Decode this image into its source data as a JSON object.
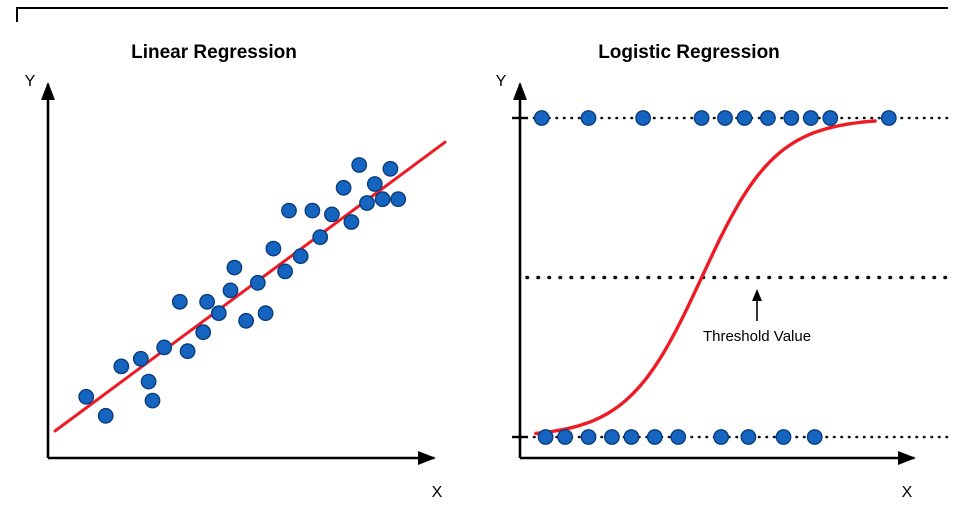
{
  "figure": {
    "background": "#ffffff",
    "dot_color": "#1565c0",
    "dot_edge_color": "#0b3d7e",
    "curve_color": "#ed1c24",
    "axis_color": "#000000"
  },
  "chart_data": [
    {
      "type": "scatter",
      "title": "Linear Regression",
      "xlabel": "X",
      "ylabel": "Y",
      "axis_tick_labels": "none",
      "xlim": [
        0,
        10
      ],
      "ylim": [
        0,
        10
      ],
      "points": [
        [
          0.8,
          1.4
        ],
        [
          1.3,
          0.9
        ],
        [
          1.7,
          2.2
        ],
        [
          2.2,
          2.4
        ],
        [
          2.4,
          1.8
        ],
        [
          2.5,
          1.3
        ],
        [
          2.8,
          2.7
        ],
        [
          3.2,
          3.9
        ],
        [
          3.4,
          2.6
        ],
        [
          3.8,
          3.1
        ],
        [
          3.9,
          3.9
        ],
        [
          4.2,
          3.6
        ],
        [
          4.5,
          4.2
        ],
        [
          4.6,
          4.8
        ],
        [
          4.9,
          3.4
        ],
        [
          5.2,
          4.4
        ],
        [
          5.4,
          3.6
        ],
        [
          5.6,
          5.3
        ],
        [
          5.9,
          4.7
        ],
        [
          6.0,
          6.3
        ],
        [
          6.3,
          5.1
        ],
        [
          6.6,
          6.3
        ],
        [
          6.8,
          5.6
        ],
        [
          7.1,
          6.2
        ],
        [
          7.4,
          6.9
        ],
        [
          7.6,
          6.0
        ],
        [
          7.8,
          7.5
        ],
        [
          8.0,
          6.5
        ],
        [
          8.2,
          7.0
        ],
        [
          8.4,
          6.6
        ],
        [
          8.6,
          7.4
        ],
        [
          8.8,
          6.6
        ]
      ],
      "trend_line": {
        "type": "linear",
        "from": [
          0,
          0.5
        ],
        "to": [
          10,
          8.1
        ]
      }
    },
    {
      "type": "scatter",
      "title": "Logistic Regression",
      "xlabel": "X",
      "ylabel": "Y",
      "axis_tick_labels": "none",
      "xlim": [
        0,
        10
      ],
      "class_levels": [
        0,
        1
      ],
      "class1_x": [
        0.3,
        1.5,
        2.9,
        4.4,
        5.0,
        5.5,
        6.1,
        6.7,
        7.2,
        7.7,
        9.2
      ],
      "class0_x": [
        0.4,
        0.9,
        1.5,
        2.1,
        2.6,
        3.2,
        3.8,
        4.9,
        5.6,
        6.5,
        7.3
      ],
      "sigmoid_curve": {
        "midpoint_x": 4.4,
        "steepness": 1.05,
        "x_range": [
          0.15,
          8.9
        ]
      },
      "threshold": {
        "y": 0.5,
        "label": "Threshold Value"
      },
      "level_lines": {
        "top_y": 1,
        "bottom_y": 0,
        "style": "dotted"
      }
    }
  ]
}
